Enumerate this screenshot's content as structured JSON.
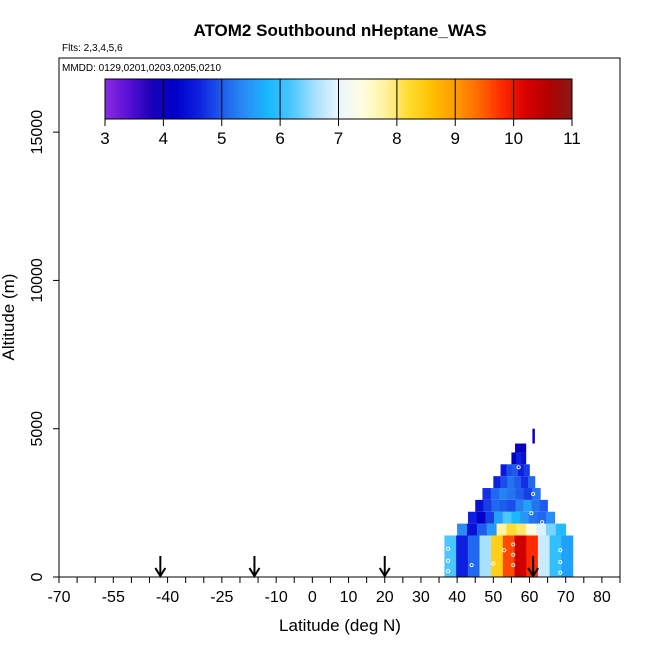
{
  "chart_data": {
    "type": "heatmap",
    "title": "ATOM2 Southbound nHeptane_WAS",
    "flights_note": "Flts: 2,3,4,5,6",
    "dates_note": "MMDD: 0129,0201,0203,0205,0210",
    "xlabel": "Latitude (deg N)",
    "ylabel": "Altitude (m)",
    "xlim": [
      -70,
      85
    ],
    "ylim": [
      0,
      17500
    ],
    "x_ticks": [
      -70,
      -55,
      -40,
      -25,
      -10,
      0,
      10,
      20,
      30,
      40,
      50,
      60,
      70,
      80
    ],
    "x_tick_labels": [
      "-70",
      "-55",
      "-40",
      "-25",
      "-10",
      "0",
      "10",
      "20",
      "30",
      "40",
      "50",
      "60",
      "70",
      "80"
    ],
    "x_minor_step": 5,
    "y_ticks": [
      0,
      5000,
      10000,
      15000
    ],
    "y_tick_labels": [
      "0",
      "5000",
      "10000",
      "15000"
    ],
    "colorbar": {
      "min": 3,
      "max": 11,
      "ticks": [
        3,
        4,
        5,
        6,
        7,
        8,
        9,
        10,
        11
      ],
      "tick_labels": [
        "3",
        "4",
        "5",
        "6",
        "7",
        "8",
        "9",
        "10",
        "11"
      ],
      "colors": [
        "#8b2be2",
        "#5a10d6",
        "#1a00b8",
        "#0000c8",
        "#0f1fe0",
        "#1e5cee",
        "#2a8cf5",
        "#18b8ff",
        "#4cc6ff",
        "#a8e0ff",
        "#eaf6ff",
        "#fffde0",
        "#fff2a0",
        "#ffdd30",
        "#ffc000",
        "#ff9a00",
        "#ff6a00",
        "#ff2a00",
        "#d80000",
        "#b00000",
        "#8a1a1a"
      ]
    },
    "arrows_lat": [
      -42,
      -16,
      20,
      61
    ],
    "columns": [
      {
        "x0": 36.5,
        "x1": 72,
        "y0": 0,
        "y1": 1400,
        "values": [
          6.2,
          4.6,
          5.1,
          6.6,
          8.4,
          9.6,
          10.3,
          9.8,
          6.8,
          6.0,
          5.6
        ]
      },
      {
        "x0": 40,
        "x1": 70,
        "y0": 1400,
        "y1": 1800,
        "values": [
          5.4,
          4.4,
          5.0,
          5.5,
          7.8,
          8.2,
          8.0,
          7.4,
          6.9,
          6.4,
          5.9
        ]
      },
      {
        "x0": 43,
        "x1": 67,
        "y0": 1800,
        "y1": 2200,
        "values": [
          4.6,
          4.2,
          4.8,
          5.6,
          6.2,
          5.8,
          5.5,
          5.2,
          5.1,
          5.4
        ]
      },
      {
        "x0": 45,
        "x1": 65,
        "y0": 2200,
        "y1": 2600,
        "values": [
          4.4,
          4.8,
          5.1,
          5.0,
          4.9,
          5.3,
          5.6,
          5.2,
          5.0
        ]
      },
      {
        "x0": 47,
        "x1": 63,
        "y0": 2600,
        "y1": 3000,
        "values": [
          4.7,
          5.1,
          5.3,
          5.2,
          5.0,
          4.8,
          5.2
        ]
      },
      {
        "x0": 50,
        "x1": 61.5,
        "y0": 3000,
        "y1": 3400,
        "values": [
          4.6,
          4.9,
          5.2,
          5.0,
          4.7,
          5.1
        ]
      },
      {
        "x0": 52,
        "x1": 60,
        "y0": 3400,
        "y1": 3800,
        "values": [
          4.5,
          4.9,
          5.0,
          4.6,
          4.8
        ]
      },
      {
        "x0": 55,
        "x1": 59,
        "y0": 3800,
        "y1": 4200,
        "values": [
          4.2,
          4.6,
          4.4
        ]
      },
      {
        "x0": 56,
        "x1": 59,
        "y0": 4200,
        "y1": 4500,
        "values": [
          4.0,
          4.1
        ]
      },
      {
        "x0": 60.8,
        "x1": 61.4,
        "y0": 4500,
        "y1": 5000,
        "values": [
          4.0
        ]
      }
    ],
    "sample_points": [
      [
        37.5,
        200
      ],
      [
        37.5,
        550
      ],
      [
        37.5,
        950
      ],
      [
        55.5,
        400
      ],
      [
        55.5,
        750
      ],
      [
        55.5,
        1100
      ],
      [
        68.5,
        900
      ],
      [
        68.5,
        500
      ],
      [
        68.5,
        150
      ],
      [
        50,
        450
      ],
      [
        60.5,
        2150
      ],
      [
        61,
        2800
      ],
      [
        57,
        3700
      ],
      [
        63.5,
        1850
      ],
      [
        44,
        400
      ],
      [
        53,
        900
      ]
    ]
  }
}
